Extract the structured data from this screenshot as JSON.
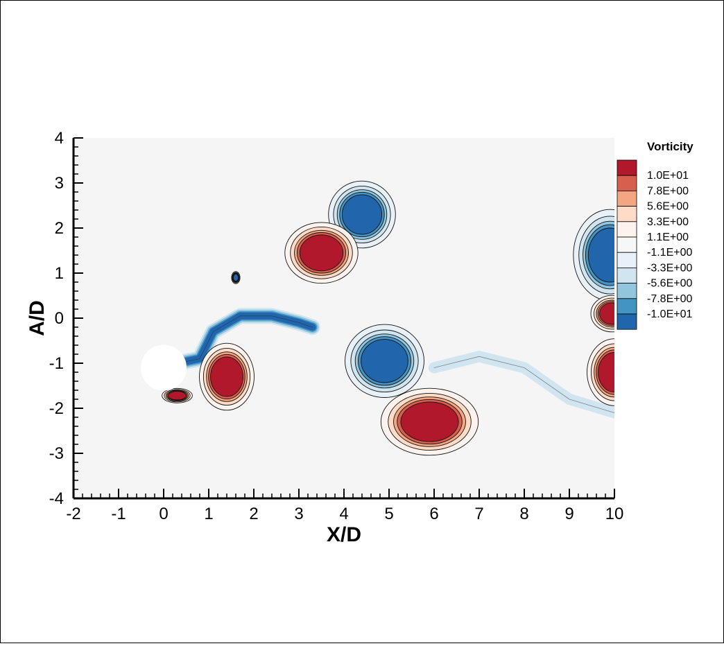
{
  "chart_data": {
    "type": "heatmap",
    "subtype": "filled-contour",
    "xlabel": "X/D",
    "ylabel": "A/D",
    "xlim": [
      -2,
      10
    ],
    "ylim": [
      -4,
      4
    ],
    "xticks": [
      -2,
      -1,
      0,
      1,
      2,
      3,
      4,
      5,
      6,
      7,
      8,
      9,
      10
    ],
    "yticks": [
      -4,
      -3,
      -2,
      -1,
      0,
      1,
      2,
      3,
      4
    ],
    "legend": {
      "title": "Vorticity",
      "placement": "right",
      "levels": [
        "1.0E+01",
        "7.8E+00",
        "5.6E+00",
        "3.3E+00",
        "1.1E+00",
        "-1.1E+00",
        "-3.3E+00",
        "-5.6E+00",
        "-7.8E+00",
        "-1.0E+01"
      ],
      "colors": [
        "#b2182b",
        "#d6604d",
        "#f4a582",
        "#fddbc7",
        "#fdf3ee",
        "#f7f7f7",
        "#e8f1f7",
        "#d1e5f0",
        "#92c5de",
        "#4393c3",
        "#2166ac"
      ]
    },
    "background_color": "#f5f5f5",
    "cylinder": {
      "x": 0,
      "y": -1.1,
      "diameter": 1
    },
    "vortices": [
      {
        "sign": "negative",
        "x": 4.4,
        "y": 2.3,
        "rx": 0.55,
        "ry": 0.55
      },
      {
        "sign": "positive",
        "x": 3.5,
        "y": 1.45,
        "rx": 0.6,
        "ry": 0.5
      },
      {
        "sign": "negative",
        "x": 4.9,
        "y": -0.95,
        "rx": 0.65,
        "ry": 0.6
      },
      {
        "sign": "positive",
        "x": 5.9,
        "y": -2.3,
        "rx": 0.8,
        "ry": 0.55
      },
      {
        "sign": "negative",
        "x": 9.9,
        "y": 1.4,
        "rx": 0.6,
        "ry": 0.75
      },
      {
        "sign": "positive",
        "x": 9.95,
        "y": 0.1,
        "rx": 0.35,
        "ry": 0.3
      },
      {
        "sign": "positive",
        "x": 10.0,
        "y": -1.2,
        "rx": 0.45,
        "ry": 0.55
      },
      {
        "sign": "positive",
        "x": 1.4,
        "y": -1.3,
        "rx": 0.45,
        "ry": 0.55
      },
      {
        "sign": "positive",
        "x": 0.3,
        "y": -1.72,
        "rx": 0.25,
        "ry": 0.12
      },
      {
        "sign": "negative",
        "x": 1.6,
        "y": 0.9,
        "rx": 0.07,
        "ry": 0.1
      }
    ],
    "shear_layers": [
      {
        "sign": "negative",
        "points": [
          [
            0.3,
            -1.0
          ],
          [
            0.8,
            -0.9
          ],
          [
            1.1,
            -0.3
          ],
          [
            1.7,
            0.05
          ],
          [
            2.4,
            0.05
          ],
          [
            3.0,
            -0.1
          ],
          [
            3.3,
            -0.2
          ]
        ],
        "width": 0.35
      },
      {
        "sign": "negative-weak",
        "points": [
          [
            6.0,
            -1.1
          ],
          [
            7.0,
            -0.85
          ],
          [
            8.0,
            -1.1
          ],
          [
            9.0,
            -1.8
          ],
          [
            10.0,
            -2.1
          ]
        ],
        "width": 0.25
      }
    ]
  }
}
